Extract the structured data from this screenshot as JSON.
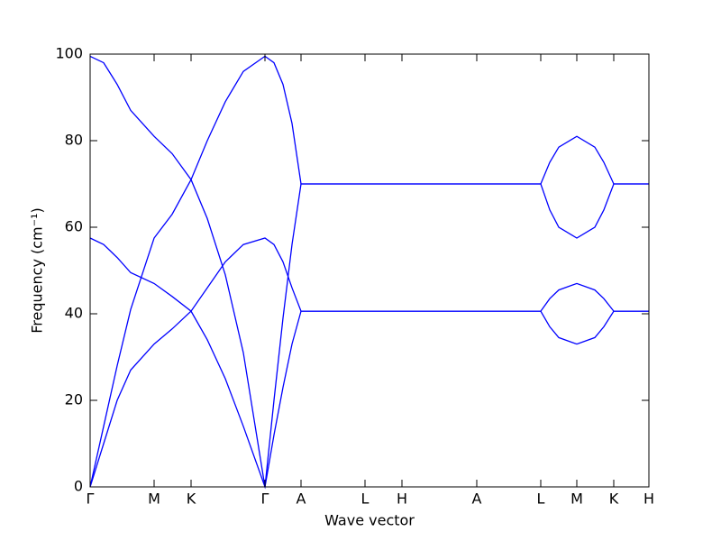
{
  "chart_data": {
    "type": "line",
    "xlabel": "Wave vector",
    "ylabel": "Frequency (cm⁻¹)",
    "xlim": [
      0,
      620
    ],
    "xticks": [
      {
        "value": 0,
        "label": "Γ"
      },
      {
        "value": 71,
        "label": "M"
      },
      {
        "value": 112,
        "label": "K"
      },
      {
        "value": 194,
        "label": "Γ"
      },
      {
        "value": 234,
        "label": "A"
      },
      {
        "value": 305,
        "label": "L"
      },
      {
        "value": 346,
        "label": "H"
      },
      {
        "value": 429,
        "label": "A"
      },
      {
        "value": 500,
        "label": "L"
      },
      {
        "value": 540,
        "label": "M"
      },
      {
        "value": 581,
        "label": "K"
      },
      {
        "value": 620,
        "label": "H"
      }
    ],
    "ylim": [
      0,
      100
    ],
    "yticks": [
      0,
      20,
      40,
      60,
      80,
      100
    ],
    "x": [
      0,
      15,
      30,
      45,
      71,
      91,
      112,
      130,
      150,
      170,
      194,
      204,
      214,
      224,
      234,
      305,
      346,
      429,
      500,
      510,
      520,
      540,
      560,
      570,
      581,
      620
    ],
    "series": [
      {
        "color": "#0000ff",
        "values": [
          99.5,
          98,
          93,
          87,
          81,
          77,
          71,
          62,
          49,
          31,
          0,
          20,
          39,
          56,
          70,
          70,
          70,
          70,
          70,
          75,
          78.5,
          81,
          78.5,
          75,
          70,
          70
        ]
      },
      {
        "color": "#0000ff",
        "values": [
          57.5,
          56,
          53,
          49.5,
          47,
          44,
          40.6,
          34,
          25,
          14,
          0,
          12,
          23,
          33,
          40.6,
          40.6,
          40.6,
          40.6,
          40.6,
          43.5,
          45.5,
          47,
          45.5,
          43.5,
          40.6,
          40.6
        ]
      },
      {
        "color": "#0000ff",
        "values": [
          0,
          14,
          28,
          41,
          57.5,
          63,
          71,
          80,
          89,
          96,
          99.5,
          98,
          93,
          84,
          70,
          70,
          70,
          70,
          70,
          64,
          60,
          57.5,
          60,
          64,
          70,
          70
        ]
      },
      {
        "color": "#0000ff",
        "values": [
          0,
          10,
          20,
          27,
          33,
          36.5,
          40.6,
          46,
          52,
          56,
          57.5,
          56,
          52,
          46,
          40.6,
          40.6,
          40.6,
          40.6,
          40.6,
          37,
          34.5,
          33,
          34.5,
          37,
          40.6,
          40.6
        ]
      }
    ]
  }
}
